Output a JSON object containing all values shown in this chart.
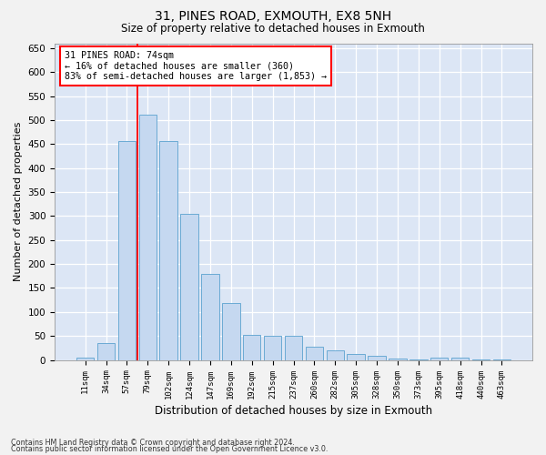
{
  "title": "31, PINES ROAD, EXMOUTH, EX8 5NH",
  "subtitle": "Size of property relative to detached houses in Exmouth",
  "xlabel": "Distribution of detached houses by size in Exmouth",
  "ylabel": "Number of detached properties",
  "categories": [
    "11sqm",
    "34sqm",
    "57sqm",
    "79sqm",
    "102sqm",
    "124sqm",
    "147sqm",
    "169sqm",
    "192sqm",
    "215sqm",
    "237sqm",
    "260sqm",
    "282sqm",
    "305sqm",
    "328sqm",
    "350sqm",
    "373sqm",
    "395sqm",
    "418sqm",
    "440sqm",
    "463sqm"
  ],
  "values": [
    5,
    35,
    457,
    512,
    457,
    305,
    180,
    118,
    52,
    50,
    50,
    28,
    20,
    13,
    8,
    3,
    2,
    5,
    5,
    2,
    2
  ],
  "bar_color": "#c5d8f0",
  "bar_edge_color": "#6aaad4",
  "bar_width": 0.85,
  "red_line_x": 2.5,
  "annotation_line1": "31 PINES ROAD: 74sqm",
  "annotation_line2": "← 16% of detached houses are smaller (360)",
  "annotation_line3": "83% of semi-detached houses are larger (1,853) →",
  "ylim": [
    0,
    660
  ],
  "yticks": [
    0,
    50,
    100,
    150,
    200,
    250,
    300,
    350,
    400,
    450,
    500,
    550,
    600,
    650
  ],
  "background_color": "#dce6f5",
  "fig_background_color": "#f2f2f2",
  "grid_color": "#ffffff",
  "footer_line1": "Contains HM Land Registry data © Crown copyright and database right 2024.",
  "footer_line2": "Contains public sector information licensed under the Open Government Licence v3.0."
}
